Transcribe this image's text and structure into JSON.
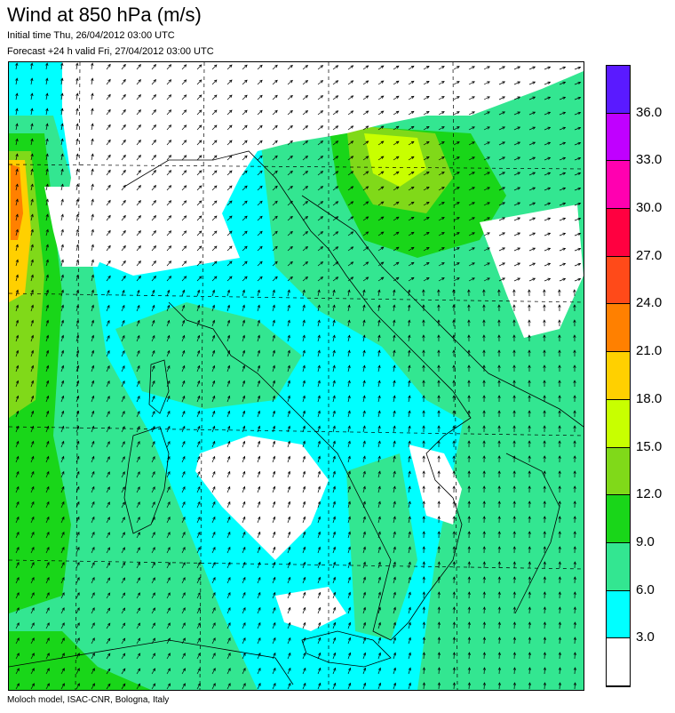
{
  "header": {
    "title": "Wind at 850 hPa (m/s)",
    "initial_time": "Initial time  Thu, 26/04/2012 03:00 UTC",
    "forecast": "Forecast +24 h valid  Fri, 27/04/2012 03:00 UTC"
  },
  "footer": {
    "credit": "Moloch model, ISAC-CNR, Bologna, Italy"
  },
  "legend": {
    "units": "m/s",
    "ticks": [
      "3.0",
      "6.0",
      "9.0",
      "12.0",
      "15.0",
      "18.0",
      "21.0",
      "24.0",
      "27.0",
      "30.0",
      "33.0",
      "36.0"
    ],
    "colors": [
      "#ffffff",
      "#00ffff",
      "#33e691",
      "#19d619",
      "#80d919",
      "#c8ff00",
      "#ffd000",
      "#ff8000",
      "#ff4a19",
      "#ff0040",
      "#ff00b0",
      "#c000ff",
      "#5a1aff"
    ]
  },
  "map": {
    "field_colors": {
      "calm": "#ffffff",
      "light": "#00ffff",
      "moderate": "#33e691",
      "fresh": "#19d619",
      "strong": "#80d919",
      "strong2": "#c8ff00",
      "gale": "#ffd000",
      "gale2": "#ff8000",
      "storm": "#ff4a19"
    },
    "arrow_color": "#000000",
    "coast_color": "#000000"
  }
}
